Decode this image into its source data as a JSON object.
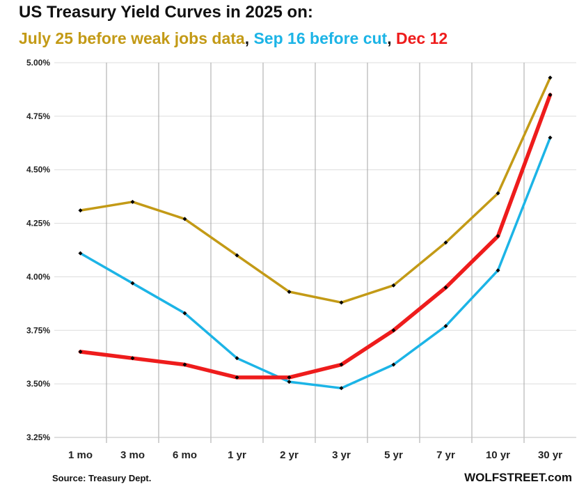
{
  "header": {
    "title": "US Treasury Yield Curves in 2025 on:",
    "subtitle_parts": [
      {
        "text": "July 25 before weak jobs data",
        "color": "#C39A16"
      },
      {
        "text": ", ",
        "color": "#111111"
      },
      {
        "text": "Sep 16 before cut",
        "color": "#1CB4E6"
      },
      {
        "text": ", ",
        "color": "#111111"
      },
      {
        "text": "Dec 12",
        "color": "#EE1C1C"
      }
    ]
  },
  "footer": {
    "source": "Source: Treasury Dept.",
    "brand": "WOLFSTREET.com"
  },
  "chart_data": {
    "type": "line",
    "title": "US Treasury Yield Curves in 2025 on:",
    "xlabel": "",
    "ylabel": "",
    "categories": [
      "1 mo",
      "3 mo",
      "6 mo",
      "1 yr",
      "2 yr",
      "3 yr",
      "5 yr",
      "7 yr",
      "10 yr",
      "30 yr"
    ],
    "ylim": [
      3.25,
      5.0
    ],
    "yticks": [
      3.25,
      3.5,
      3.75,
      4.0,
      4.25,
      4.5,
      4.75,
      5.0
    ],
    "ytick_labels": [
      "3.25%",
      "3.50%",
      "3.75%",
      "4.00%",
      "4.25%",
      "4.50%",
      "4.75%",
      "5.00%"
    ],
    "grid": true,
    "series": [
      {
        "name": "July 25 before weak jobs data",
        "color": "#C39A16",
        "values": [
          4.31,
          4.35,
          4.27,
          4.1,
          3.93,
          3.88,
          3.96,
          4.16,
          4.39,
          4.93
        ]
      },
      {
        "name": "Sep 16 before cut",
        "color": "#1CB4E6",
        "values": [
          4.11,
          3.97,
          3.83,
          3.62,
          3.51,
          3.48,
          3.59,
          3.77,
          4.03,
          4.65
        ]
      },
      {
        "name": "Dec 12",
        "color": "#EE1C1C",
        "values": [
          3.65,
          3.62,
          3.59,
          3.53,
          3.53,
          3.59,
          3.75,
          3.95,
          4.19,
          4.85
        ]
      }
    ]
  }
}
